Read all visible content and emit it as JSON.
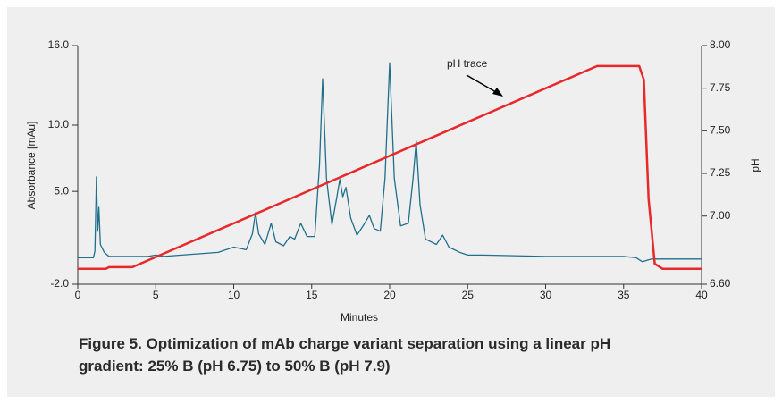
{
  "chart_data": {
    "type": "line",
    "xlabel": "Minutes",
    "ylabel": "Absorbance [mAu]",
    "y2label": "pH",
    "annotation": "pH trace",
    "caption": "Figure 5. Optimization of mAb charge variant separation using a linear pH gradient: 25% B (pH 6.75) to 50% B (pH 7.9)",
    "xlim": [
      0,
      40
    ],
    "xticks": [
      0,
      5,
      10,
      15,
      20,
      25,
      30,
      35,
      40
    ],
    "ylim": [
      -2,
      16
    ],
    "yticks": [
      {
        "value": -2,
        "label": "-2.0"
      },
      {
        "value": 5,
        "label": "5.0"
      },
      {
        "value": 10,
        "label": "10.0"
      },
      {
        "value": 16,
        "label": "16.0"
      }
    ],
    "y2lim": [
      6.6,
      8
    ],
    "y2ticks": [
      {
        "value": 6.6,
        "label": "6.60"
      },
      {
        "value": 7,
        "label": "7.00"
      },
      {
        "value": 7.25,
        "label": "7.25"
      },
      {
        "value": 7.5,
        "label": "7.50"
      },
      {
        "value": 7.75,
        "label": "7.75"
      },
      {
        "value": 8,
        "label": "8.00"
      }
    ],
    "series": [
      {
        "color": "#1f6f8b",
        "x": [
          0,
          1.0,
          1.1,
          1.2,
          1.28,
          1.35,
          1.45,
          1.7,
          2.0,
          4.5,
          5.0,
          5.5,
          9,
          10,
          10.8,
          11.2,
          11.4,
          11.6,
          12.0,
          12.4,
          12.7,
          13.2,
          13.6,
          13.9,
          14.3,
          14.7,
          15.2,
          15.5,
          15.7,
          15.95,
          16.3,
          16.6,
          16.8,
          17.0,
          17.2,
          17.5,
          17.9,
          18.3,
          18.7,
          19.0,
          19.4,
          19.7,
          20.0,
          20.3,
          20.7,
          21.2,
          21.5,
          21.7,
          21.95,
          22.3,
          23.0,
          23.4,
          23.8,
          24.5,
          25,
          26,
          30,
          35,
          35.8,
          36.2,
          36.8,
          40
        ],
        "values": [
          0,
          0,
          0.5,
          6.1,
          2.0,
          3.8,
          1.0,
          0.4,
          0.1,
          0.1,
          0.2,
          0.1,
          0.4,
          0.8,
          0.6,
          1.8,
          3.4,
          1.8,
          1.0,
          2.6,
          1.2,
          0.9,
          1.6,
          1.4,
          2.6,
          1.6,
          1.6,
          7,
          13.5,
          6,
          2.5,
          4.5,
          5.9,
          4.6,
          5.3,
          3.0,
          1.7,
          2.4,
          3.2,
          2.2,
          2.0,
          6,
          14.7,
          6,
          2.4,
          2.6,
          6,
          8.8,
          4,
          1.4,
          1.0,
          1.7,
          0.8,
          0.4,
          0.2,
          0.2,
          0.1,
          0.1,
          0.0,
          -0.3,
          -0.1,
          -0.1
        ]
      },
      {
        "color": "#e8282b",
        "axis": "y2",
        "x": [
          0,
          1.8,
          2.0,
          3.5,
          33.3,
          36.0,
          36.3,
          36.6,
          37.0,
          37.5,
          40
        ],
        "values": [
          6.69,
          6.69,
          6.7,
          6.7,
          7.88,
          7.88,
          7.8,
          7.1,
          6.72,
          6.69,
          6.69
        ]
      }
    ]
  }
}
